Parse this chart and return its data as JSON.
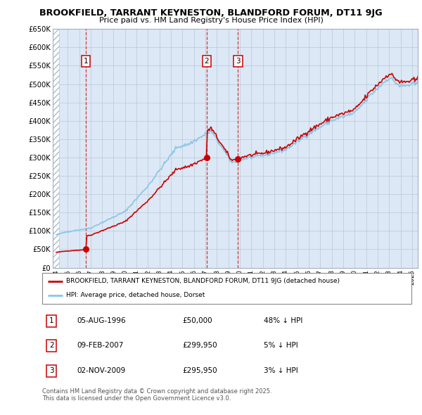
{
  "title": "BROOKFIELD, TARRANT KEYNESTON, BLANDFORD FORUM, DT11 9JG",
  "subtitle": "Price paid vs. HM Land Registry's House Price Index (HPI)",
  "legend_line1": "BROOKFIELD, TARRANT KEYNESTON, BLANDFORD FORUM, DT11 9JG (detached house)",
  "legend_line2": "HPI: Average price, detached house, Dorset",
  "sale_color": "#cc0000",
  "hpi_color": "#89c4e8",
  "plot_bg": "#dce8f5",
  "ylim": [
    0,
    650000
  ],
  "yticks": [
    0,
    50000,
    100000,
    150000,
    200000,
    250000,
    300000,
    350000,
    400000,
    450000,
    500000,
    550000,
    600000,
    650000
  ],
  "ytick_labels": [
    "£0",
    "£50K",
    "£100K",
    "£150K",
    "£200K",
    "£250K",
    "£300K",
    "£350K",
    "£400K",
    "£450K",
    "£500K",
    "£550K",
    "£600K",
    "£650K"
  ],
  "sales": [
    {
      "num": 1,
      "price": 50000,
      "x": 1996.59
    },
    {
      "num": 2,
      "price": 299950,
      "x": 2007.11
    },
    {
      "num": 3,
      "price": 295950,
      "x": 2009.84
    }
  ],
  "table_rows": [
    {
      "num": 1,
      "date": "05-AUG-1996",
      "price": "£50,000",
      "info": "48% ↓ HPI"
    },
    {
      "num": 2,
      "date": "09-FEB-2007",
      "price": "£299,950",
      "info": "5% ↓ HPI"
    },
    {
      "num": 3,
      "date": "02-NOV-2009",
      "price": "£295,950",
      "info": "3% ↓ HPI"
    }
  ],
  "footer": "Contains HM Land Registry data © Crown copyright and database right 2025.\nThis data is licensed under the Open Government Licence v3.0.",
  "xmin": 1993.7,
  "xmax": 2025.5
}
